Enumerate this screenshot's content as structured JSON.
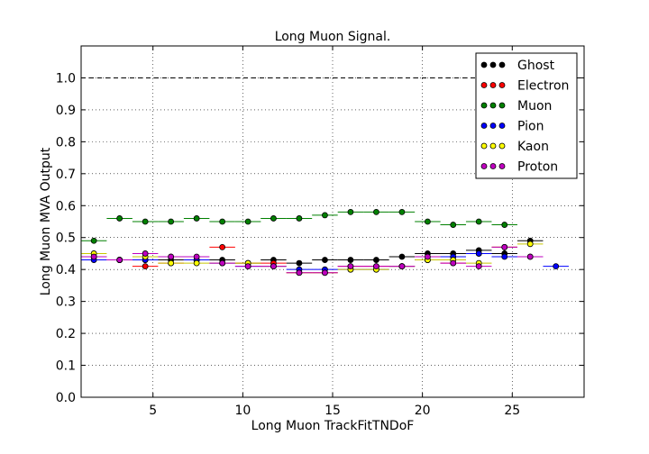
{
  "chart_data": {
    "type": "scatter",
    "title": "Long Muon Signal.",
    "xlabel": "Long Muon TrackFitTNDoF",
    "ylabel": "Long Muon MVA Output",
    "xlim": [
      1,
      29
    ],
    "ylim": [
      0.0,
      1.1
    ],
    "xticks": [
      "5",
      "10",
      "15",
      "20",
      "25"
    ],
    "yticks": [
      "0.0",
      "0.1",
      "0.2",
      "0.3",
      "0.4",
      "0.5",
      "0.6",
      "0.7",
      "0.8",
      "0.9",
      "1.0"
    ],
    "grid": true,
    "reference_line": 1.0,
    "legend_position": "top-right",
    "bin_width": 1.43,
    "series": [
      {
        "name": "Ghost",
        "color": "#000000",
        "x": [
          1.71,
          3.14,
          4.57,
          6.0,
          7.43,
          8.86,
          10.29,
          11.71,
          13.14,
          14.57,
          16.0,
          17.43,
          18.86,
          20.29,
          21.71,
          23.14,
          24.57,
          26.0
        ],
        "y": [
          0.44,
          0.43,
          0.43,
          0.43,
          0.43,
          0.43,
          0.42,
          0.43,
          0.42,
          0.43,
          0.43,
          0.43,
          0.44,
          0.45,
          0.45,
          0.46,
          0.45,
          0.49
        ]
      },
      {
        "name": "Electron",
        "color": "#ff0000",
        "x": [
          1.71,
          3.14,
          4.57,
          6.0,
          7.43,
          8.86,
          10.29,
          11.71,
          13.14,
          14.57,
          16.0,
          17.43,
          18.86,
          20.29,
          21.71,
          23.14,
          24.57
        ],
        "y": [
          0.44,
          0.43,
          0.41,
          0.42,
          0.43,
          0.47,
          0.42,
          0.42,
          0.39,
          0.39,
          0.41,
          0.41,
          0.41,
          0.43,
          0.42,
          0.45,
          0.47
        ]
      },
      {
        "name": "Muon",
        "color": "#008000",
        "x": [
          1.71,
          3.14,
          4.57,
          6.0,
          7.43,
          8.86,
          10.29,
          11.71,
          13.14,
          14.57,
          16.0,
          17.43,
          18.86,
          20.29,
          21.71,
          23.14,
          24.57
        ],
        "y": [
          0.49,
          0.56,
          0.55,
          0.55,
          0.56,
          0.55,
          0.55,
          0.56,
          0.56,
          0.57,
          0.58,
          0.58,
          0.58,
          0.55,
          0.54,
          0.55,
          0.54
        ]
      },
      {
        "name": "Pion",
        "color": "#0000ff",
        "x": [
          1.71,
          3.14,
          4.57,
          6.0,
          7.43,
          8.86,
          10.29,
          11.71,
          13.14,
          14.57,
          16.0,
          17.43,
          18.86,
          20.29,
          21.71,
          23.14,
          24.57,
          26.0,
          27.43
        ],
        "y": [
          0.43,
          0.43,
          0.43,
          0.44,
          0.43,
          0.42,
          0.41,
          0.41,
          0.4,
          0.4,
          0.4,
          0.4,
          0.41,
          0.43,
          0.44,
          0.45,
          0.44,
          0.44,
          0.41
        ]
      },
      {
        "name": "Kaon",
        "color": "#ffff00",
        "x": [
          1.71,
          3.14,
          4.57,
          6.0,
          7.43,
          8.86,
          10.29,
          11.71,
          13.14,
          14.57,
          16.0,
          17.43,
          18.86,
          20.29,
          21.71,
          23.14,
          24.57,
          26.0
        ],
        "y": [
          0.45,
          0.43,
          0.44,
          0.42,
          0.42,
          0.42,
          0.42,
          0.41,
          0.39,
          0.39,
          0.4,
          0.4,
          0.41,
          0.43,
          0.43,
          0.42,
          0.47,
          0.48
        ]
      },
      {
        "name": "Proton",
        "color": "#bf00bf",
        "x": [
          1.71,
          3.14,
          4.57,
          6.0,
          7.43,
          8.86,
          10.29,
          11.71,
          13.14,
          14.57,
          16.0,
          17.43,
          18.86,
          20.29,
          21.71,
          23.14,
          24.57,
          26.0
        ],
        "y": [
          0.44,
          0.43,
          0.45,
          0.44,
          0.44,
          0.42,
          0.41,
          0.41,
          0.39,
          0.39,
          0.41,
          0.41,
          0.41,
          0.44,
          0.42,
          0.41,
          0.47,
          0.44
        ]
      }
    ]
  }
}
